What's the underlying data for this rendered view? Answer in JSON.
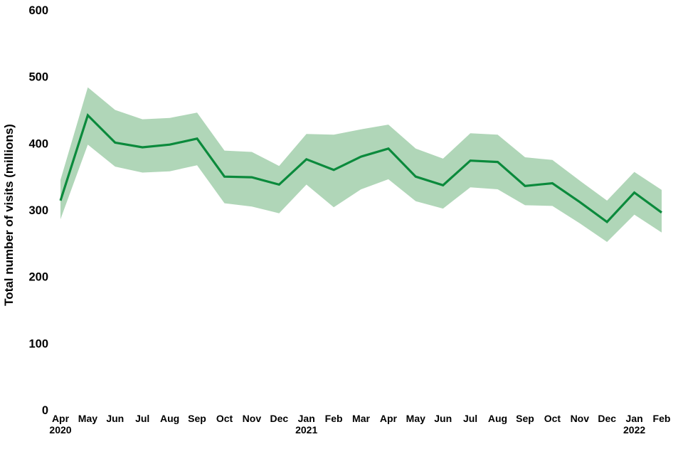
{
  "chart_data": {
    "type": "line",
    "title": "",
    "xlabel": "",
    "ylabel": "Total number of visits (millions)",
    "ylim": [
      0,
      600
    ],
    "yticks": [
      0,
      100,
      200,
      300,
      400,
      500,
      600
    ],
    "grid": false,
    "legend": "none",
    "line_color": "#0b8a3c",
    "band_color": "#b0d6b8",
    "text_color": "#000000",
    "categories": [
      {
        "label": "Apr",
        "year": "2020"
      },
      {
        "label": "May"
      },
      {
        "label": "Jun"
      },
      {
        "label": "Jul"
      },
      {
        "label": "Aug"
      },
      {
        "label": "Sep"
      },
      {
        "label": "Oct"
      },
      {
        "label": "Nov"
      },
      {
        "label": "Dec"
      },
      {
        "label": "Jan",
        "year": "2021"
      },
      {
        "label": "Feb"
      },
      {
        "label": "Mar"
      },
      {
        "label": "Apr"
      },
      {
        "label": "May"
      },
      {
        "label": "Jun"
      },
      {
        "label": "Jul"
      },
      {
        "label": "Aug"
      },
      {
        "label": "Sep"
      },
      {
        "label": "Oct"
      },
      {
        "label": "Nov"
      },
      {
        "label": "Dec"
      },
      {
        "label": "Jan",
        "year": "2022"
      },
      {
        "label": "Feb"
      }
    ],
    "series": [
      {
        "name": "Total number of visits",
        "values": [
          314,
          442,
          401,
          394,
          398,
          407,
          350,
          349,
          338,
          376,
          360,
          380,
          392,
          350,
          337,
          374,
          372,
          336,
          340,
          312,
          282,
          326,
          296
        ]
      }
    ],
    "band": {
      "name": "confidence-interval",
      "upper": [
        345,
        484,
        450,
        436,
        438,
        446,
        389,
        387,
        366,
        414,
        413,
        421,
        428,
        392,
        377,
        415,
        413,
        379,
        375,
        344,
        314,
        357,
        330
      ],
      "lower": [
        286,
        398,
        365,
        356,
        358,
        367,
        310,
        305,
        295,
        338,
        304,
        331,
        346,
        313,
        302,
        334,
        331,
        307,
        306,
        280,
        252,
        293,
        266
      ]
    }
  }
}
